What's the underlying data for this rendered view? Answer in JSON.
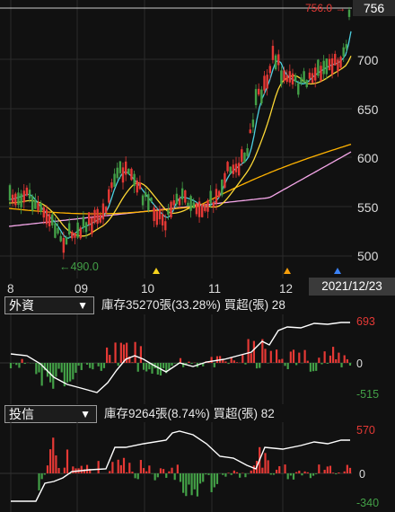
{
  "main_chart": {
    "y_ticks": [
      "700",
      "650",
      "600",
      "550",
      "500"
    ],
    "x_ticks": [
      "8",
      "09",
      "10",
      "11",
      "12"
    ],
    "current_price": "756",
    "high_marker": "756.0 →",
    "low_marker": "←490.0",
    "date_label": "2021/12/23",
    "colors": {
      "up": "#e53935",
      "down": "#43a047",
      "ma5": "#4dd0e1",
      "ma20": "#fdd835",
      "ma60": "#ffb300",
      "ma120": "#f4a6e8",
      "marker_yellow": "#f6d21d",
      "marker_orange": "#f59e0b",
      "marker_blue": "#3b82f6"
    }
  },
  "foreign": {
    "selector": "外資",
    "caret": "▼",
    "info": "庫存35270張(33.28%)  買超(張) 28",
    "scale_top": "693",
    "scale_zero": "0",
    "scale_bottom": "-515"
  },
  "trust": {
    "selector": "投信",
    "caret": "▼",
    "info": "庫存9264張(8.74%)  買超(張) 82",
    "scale_top": "570",
    "scale_zero": "0",
    "scale_bottom": "-340"
  }
}
